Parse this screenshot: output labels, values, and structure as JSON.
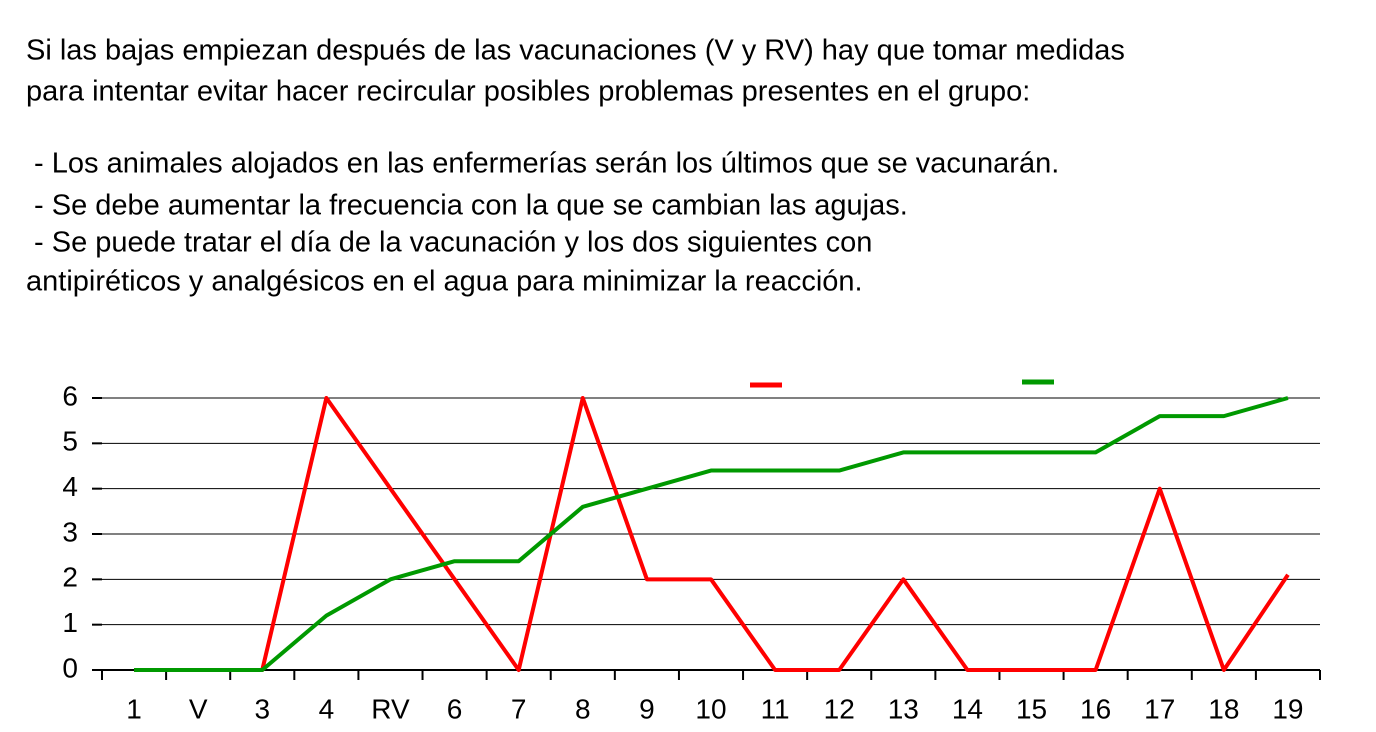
{
  "text": {
    "lines": [
      "Si las bajas empiezan después de las vacunaciones (V y RV) hay que tomar medidas",
      "para intentar evitar hacer recircular posibles problemas presentes en el grupo:",
      " - Los animales alojados en las enfermerías serán los últimos que se vacunarán.",
      " - Se debe aumentar la frecuencia con la que se cambian las agujas.",
      " - Se puede tratar el día de la vacunación y los dos siguientes con",
      "antipiréticos y analgésicos en el agua para minimizar la reacción."
    ]
  },
  "chart_data": {
    "type": "line",
    "categories": [
      "1",
      "V",
      "3",
      "4",
      "RV",
      "6",
      "7",
      "8",
      "9",
      "10",
      "11",
      "12",
      "13",
      "14",
      "15",
      "16",
      "17",
      "18",
      "19"
    ],
    "series": [
      {
        "color": "#ff0000",
        "values": [
          0,
          0,
          0,
          6,
          4,
          2,
          0,
          6,
          2,
          2,
          0,
          0,
          2,
          0,
          0,
          0,
          4,
          0,
          2.1
        ]
      },
      {
        "color": "#009900",
        "values": [
          0,
          0,
          0,
          1.2,
          2,
          2.4,
          2.4,
          3.6,
          4,
          4.4,
          4.4,
          4.4,
          4.8,
          4.8,
          4.8,
          4.8,
          5.6,
          5.6,
          6
        ]
      }
    ],
    "ylim": [
      0,
      6
    ],
    "yticks": [
      0,
      1,
      2,
      3,
      4,
      5,
      6
    ],
    "grid": true
  }
}
